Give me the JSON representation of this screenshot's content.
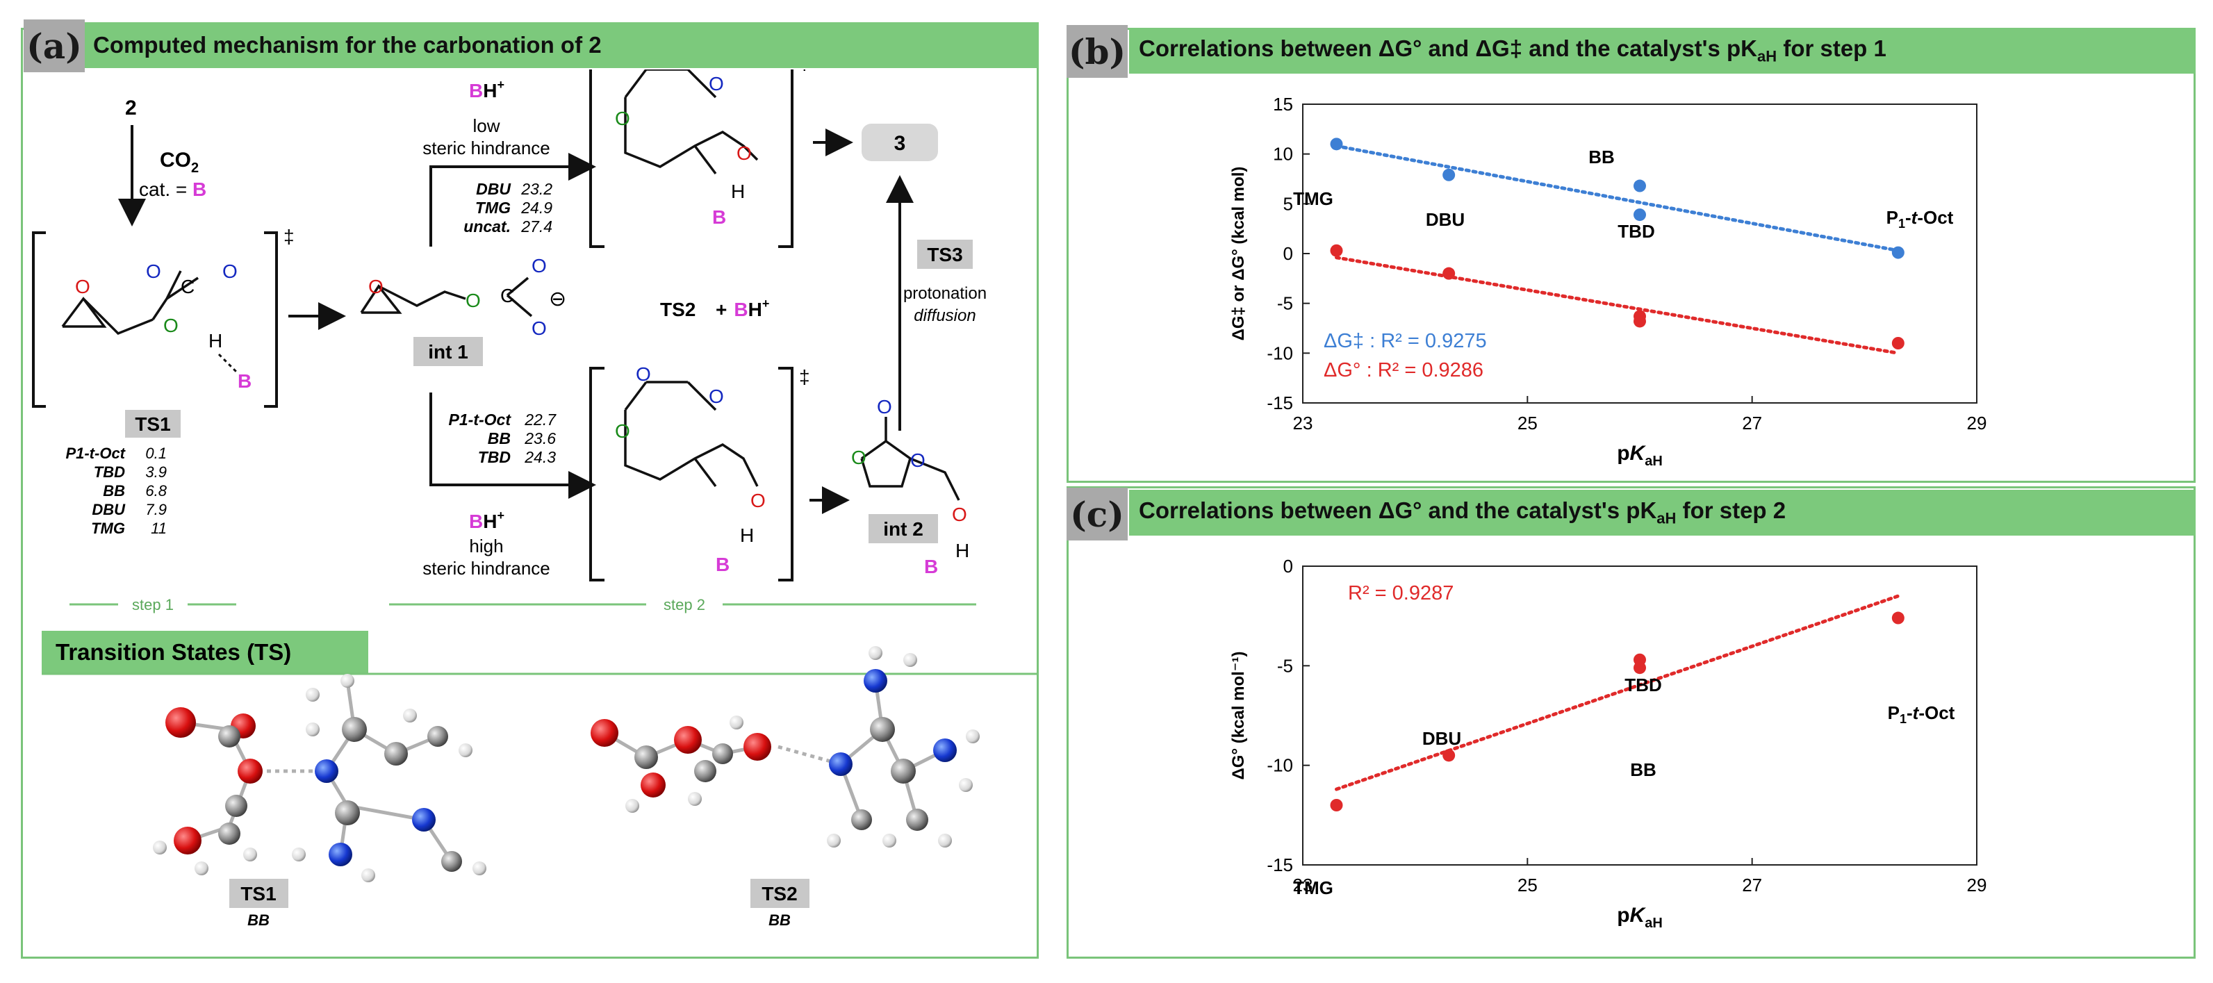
{
  "panel_a": {
    "tag": "(a)",
    "title": "Computed mechanism for the carbonation of 2",
    "compound_2": "2",
    "reagent": "CO",
    "reagent_sub": "2",
    "catalyst": "cat. = ",
    "catalyst_B": "B",
    "ts1_label": "TS1",
    "int1_label": "int 1",
    "int2_label": "int 2",
    "ts2_label": "TS2",
    "plus_bh": "+ ",
    "product": "3",
    "ts3_label": "TS3",
    "ts3_line1": "protonation",
    "ts3_line2": "diffusion",
    "bh_top": "BH",
    "bh_top_l1": "low",
    "bh_top_l2": "steric hindrance",
    "bh_bottom": "BH",
    "bh_bottom_l1": "high",
    "bh_bottom_l2": "steric hindrance",
    "dagger": "‡",
    "plus_sign": "+",
    "ts1_energies": [
      {
        "cat": "P1-t-Oct",
        "val": "0.1"
      },
      {
        "cat": "TBD",
        "val": "3.9"
      },
      {
        "cat": "BB",
        "val": "6.8"
      },
      {
        "cat": "DBU",
        "val": "7.9"
      },
      {
        "cat": "TMG",
        "val": "11"
      }
    ],
    "upper_energies": [
      {
        "cat": "DBU",
        "val": "23.2"
      },
      {
        "cat": "TMG",
        "val": "24.9"
      },
      {
        "cat": "uncat.",
        "val": "27.4"
      }
    ],
    "lower_energies": [
      {
        "cat": "P1-t-Oct",
        "val": "22.7"
      },
      {
        "cat": "BB",
        "val": "23.6"
      },
      {
        "cat": "TBD",
        "val": "24.3"
      }
    ],
    "step1": "step 1",
    "step2": "step 2",
    "ts_header": "Transition States (TS)",
    "ts_struct1_label": "TS1",
    "ts_struct1_sub": "BB",
    "ts_struct2_label": "TS2",
    "ts_struct2_sub": "BB",
    "atoms": {
      "O": "O",
      "C": "C",
      "H": "H",
      "B": "B",
      "minus": "⊖"
    }
  },
  "panel_b": {
    "tag": "(b)",
    "title": "Correlations between ΔG° and ΔG‡ and the catalyst's pK",
    "title_sub": "aH",
    "title_end": " for step 1",
    "legend_dag": "ΔG‡ : R² = 0.9275",
    "legend_deg": "ΔG° : R² = 0.9286"
  },
  "panel_c": {
    "tag": "(c)",
    "title": "Correlations between ΔG° and the catalyst's pK",
    "title_sub": "aH",
    "title_end": " for step 2",
    "r2": "R² = 0.9287"
  },
  "chart_data": [
    {
      "type": "scatter",
      "title": "Correlations between ΔG° and ΔG‡ and the catalyst's pKaH for step 1",
      "xlabel": "pKaH",
      "ylabel": "ΔG‡ or ΔG° (kcal mol)",
      "xlim": [
        23,
        29
      ],
      "ylim": [
        -15,
        15
      ],
      "xticks": [
        23,
        25,
        27,
        29
      ],
      "yticks": [
        15,
        10,
        5,
        0,
        -5,
        -10,
        -15
      ],
      "catalyst_labels": [
        "TMG",
        "DBU",
        "BB",
        "TBD",
        "P1-t-Oct"
      ],
      "series": [
        {
          "name": "ΔG‡",
          "color": "#3d7fd4",
          "x": [
            23.3,
            24.3,
            26.0,
            26.0,
            28.3
          ],
          "y": [
            11.0,
            7.9,
            6.8,
            3.9,
            0.1
          ],
          "fit": [
            [
              23.3,
              10.8
            ],
            [
              28.3,
              0.3
            ]
          ],
          "r2": "0.9275"
        },
        {
          "name": "ΔG°",
          "color": "#e02a2a",
          "x": [
            23.3,
            24.3,
            26.0,
            26.0,
            28.3
          ],
          "y": [
            0.3,
            -2.0,
            -6.3,
            -6.8,
            -9.0
          ],
          "fit": [
            [
              23.3,
              -0.4
            ],
            [
              28.3,
              -10.0
            ]
          ],
          "r2": "0.9286"
        }
      ]
    },
    {
      "type": "scatter",
      "title": "Correlations between ΔG° and the catalyst's pKaH for step 2",
      "xlabel": "pKaH",
      "ylabel": "ΔG° (kcal mol⁻¹)",
      "xlim": [
        23,
        29
      ],
      "ylim": [
        -15,
        0
      ],
      "xticks": [
        23,
        25,
        27,
        29
      ],
      "yticks": [
        0,
        -5,
        -10,
        -15
      ],
      "catalyst_labels": [
        "TMG",
        "DBU",
        "TBD",
        "BB",
        "P1-t-Oct"
      ],
      "series": [
        {
          "name": "ΔG°",
          "color": "#e02a2a",
          "x": [
            23.3,
            24.3,
            26.0,
            26.0,
            28.3
          ],
          "y": [
            -12.0,
            -9.5,
            -4.7,
            -5.1,
            -2.6
          ],
          "fit": [
            [
              23.3,
              -11.2
            ],
            [
              28.3,
              -1.5
            ]
          ],
          "r2": "0.9287"
        }
      ]
    }
  ]
}
